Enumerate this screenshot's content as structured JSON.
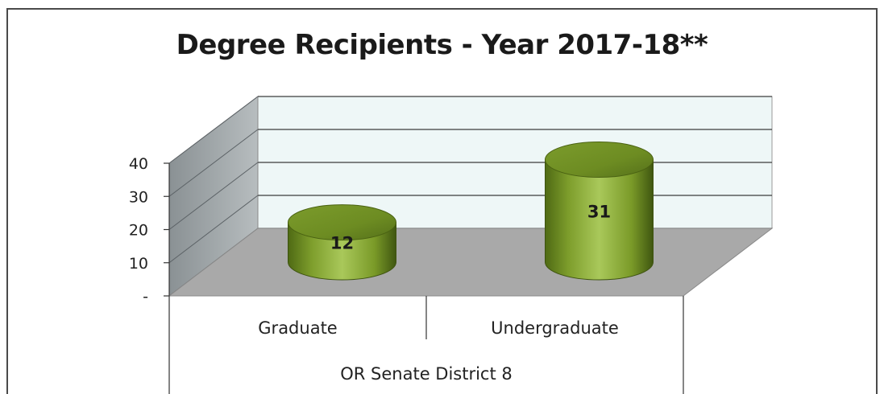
{
  "chart_data": {
    "type": "bar",
    "title": "Degree Recipients - Year 2017-18**",
    "categories": [
      "Graduate",
      "Undergraduate"
    ],
    "group_label": "OR Senate District 8",
    "values": [
      12,
      31
    ],
    "data_labels": [
      "12",
      "31"
    ],
    "ylim": [
      0,
      40
    ],
    "yticks": [
      {
        "value": 0,
        "label": "-"
      },
      {
        "value": 10,
        "label": "10"
      },
      {
        "value": 20,
        "label": "20"
      },
      {
        "value": 30,
        "label": "30"
      },
      {
        "value": 40,
        "label": "40"
      }
    ],
    "grid": true,
    "style": "3d-cylinder",
    "bar_color": "#8fb03a",
    "wall_color": "#eef7f7",
    "floor_color": "#a9a9a9",
    "side_wall_color": "#9aa0a3"
  }
}
